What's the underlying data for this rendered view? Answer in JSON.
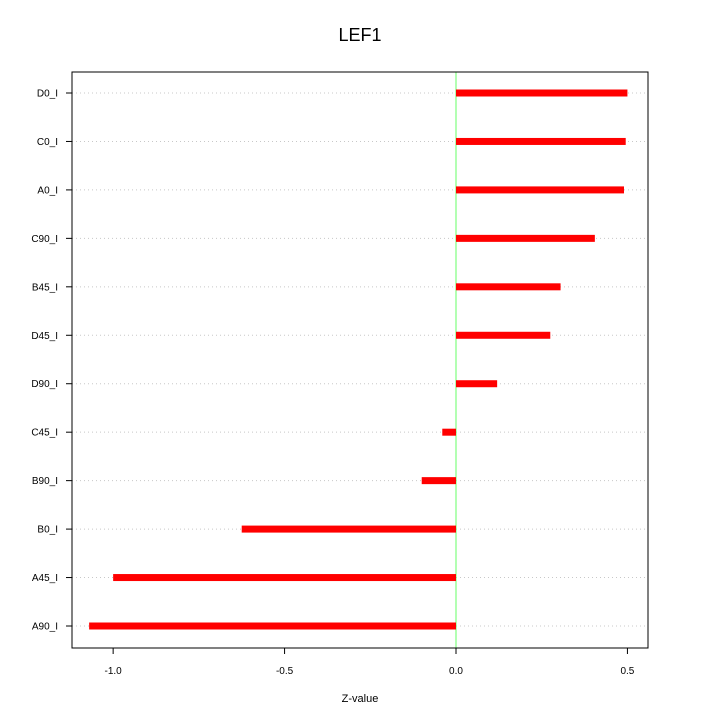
{
  "chart_data": {
    "type": "bar",
    "orientation": "horizontal",
    "title": "LEF1",
    "xlabel": "Z-value",
    "ylabel": "",
    "xlim": [
      -1.12,
      0.56
    ],
    "xticks": [
      -1.0,
      -0.5,
      0.0,
      0.5
    ],
    "xtick_labels": [
      "-1.0",
      "-0.5",
      "0.0",
      "0.5"
    ],
    "grid": "horizontal dotted",
    "reference_line_x": 0,
    "categories": [
      "D0_I",
      "C0_I",
      "A0_I",
      "C90_I",
      "B45_I",
      "D45_I",
      "D90_I",
      "C45_I",
      "B90_I",
      "B0_I",
      "A45_I",
      "A90_I"
    ],
    "values": [
      0.5,
      0.495,
      0.49,
      0.405,
      0.305,
      0.275,
      0.12,
      -0.04,
      -0.1,
      -0.625,
      -1.0,
      -1.07
    ],
    "colors": {
      "bar": "#ff0000",
      "reference_line": "#80ff80",
      "grid": "#c8c8c8",
      "frame": "#000000"
    }
  }
}
